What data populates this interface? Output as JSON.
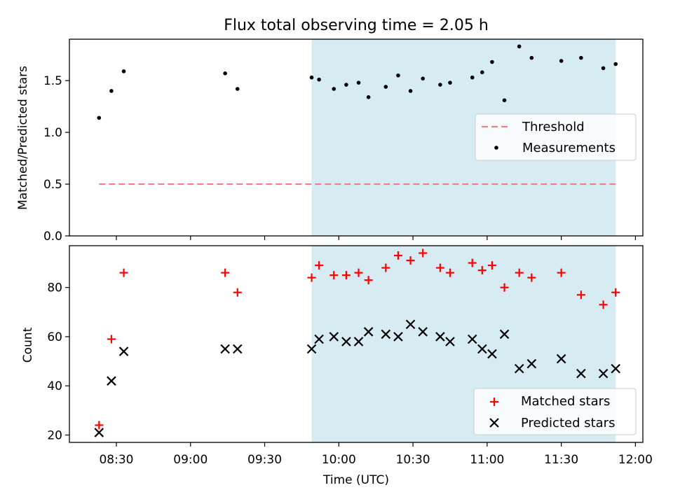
{
  "chart_data": [
    {
      "type": "scatter",
      "title": "Flux total observing time = 2.05 h",
      "xlabel": "",
      "ylabel": "Matched/Predicted stars",
      "ylim": [
        0,
        1.9
      ],
      "yticks": [
        "0.0",
        "0.5",
        "1.0",
        "1.5"
      ],
      "legend": {
        "position": "center-right",
        "entries": [
          "Threshold",
          "Measurements"
        ]
      },
      "shaded_span": {
        "start": "09:49",
        "end": "11:52",
        "color": "#add8e6"
      },
      "threshold": {
        "name": "Threshold",
        "value": 0.5,
        "x_start": "08:23",
        "x_end": "11:52",
        "color": "#f08080"
      },
      "series": [
        {
          "name": "Measurements",
          "color": "#000000",
          "marker": "dot",
          "points": [
            [
              "08:23",
              1.14
            ],
            [
              "08:28",
              1.4
            ],
            [
              "08:33",
              1.59
            ],
            [
              "09:14",
              1.57
            ],
            [
              "09:19",
              1.42
            ],
            [
              "09:49",
              1.53
            ],
            [
              "09:52",
              1.51
            ],
            [
              "09:58",
              1.42
            ],
            [
              "10:03",
              1.46
            ],
            [
              "10:08",
              1.48
            ],
            [
              "10:12",
              1.34
            ],
            [
              "10:19",
              1.44
            ],
            [
              "10:24",
              1.55
            ],
            [
              "10:29",
              1.4
            ],
            [
              "10:34",
              1.52
            ],
            [
              "10:41",
              1.46
            ],
            [
              "10:45",
              1.48
            ],
            [
              "10:54",
              1.53
            ],
            [
              "10:58",
              1.58
            ],
            [
              "11:02",
              1.68
            ],
            [
              "11:07",
              1.31
            ],
            [
              "11:13",
              1.83
            ],
            [
              "11:18",
              1.72
            ],
            [
              "11:30",
              1.69
            ],
            [
              "11:38",
              1.72
            ],
            [
              "11:47",
              1.62
            ],
            [
              "11:52",
              1.66
            ]
          ]
        }
      ]
    },
    {
      "type": "scatter",
      "title": "",
      "xlabel": "Time (UTC)",
      "ylabel": "Count",
      "ylim": [
        17,
        97
      ],
      "yticks": [
        "20",
        "40",
        "60",
        "80"
      ],
      "xlim": [
        "08:11",
        "12:03"
      ],
      "xticks": [
        "08:30",
        "09:00",
        "09:30",
        "10:00",
        "10:30",
        "11:00",
        "11:30",
        "12:00"
      ],
      "legend": {
        "position": "lower-right",
        "entries": [
          "Matched stars",
          "Predicted stars"
        ]
      },
      "shaded_span": {
        "start": "09:49",
        "end": "11:52",
        "color": "#add8e6"
      },
      "series": [
        {
          "name": "Matched stars",
          "color": "#ff0000",
          "marker": "plus",
          "points": [
            [
              "08:23",
              24
            ],
            [
              "08:28",
              59
            ],
            [
              "08:33",
              86
            ],
            [
              "09:14",
              86
            ],
            [
              "09:19",
              78
            ],
            [
              "09:49",
              84
            ],
            [
              "09:52",
              89
            ],
            [
              "09:58",
              85
            ],
            [
              "10:03",
              85
            ],
            [
              "10:08",
              86
            ],
            [
              "10:12",
              83
            ],
            [
              "10:19",
              88
            ],
            [
              "10:24",
              93
            ],
            [
              "10:29",
              91
            ],
            [
              "10:34",
              94
            ],
            [
              "10:41",
              88
            ],
            [
              "10:45",
              86
            ],
            [
              "10:54",
              90
            ],
            [
              "10:58",
              87
            ],
            [
              "11:02",
              89
            ],
            [
              "11:07",
              80
            ],
            [
              "11:13",
              86
            ],
            [
              "11:18",
              84
            ],
            [
              "11:30",
              86
            ],
            [
              "11:38",
              77
            ],
            [
              "11:47",
              73
            ],
            [
              "11:52",
              78
            ]
          ]
        },
        {
          "name": "Predicted stars",
          "color": "#000000",
          "marker": "x",
          "points": [
            [
              "08:23",
              21
            ],
            [
              "08:28",
              42
            ],
            [
              "08:33",
              54
            ],
            [
              "09:14",
              55
            ],
            [
              "09:19",
              55
            ],
            [
              "09:49",
              55
            ],
            [
              "09:52",
              59
            ],
            [
              "09:58",
              60
            ],
            [
              "10:03",
              58
            ],
            [
              "10:08",
              58
            ],
            [
              "10:12",
              62
            ],
            [
              "10:19",
              61
            ],
            [
              "10:24",
              60
            ],
            [
              "10:29",
              65
            ],
            [
              "10:34",
              62
            ],
            [
              "10:41",
              60
            ],
            [
              "10:45",
              58
            ],
            [
              "10:54",
              59
            ],
            [
              "10:58",
              55
            ],
            [
              "11:02",
              53
            ],
            [
              "11:07",
              61
            ],
            [
              "11:13",
              47
            ],
            [
              "11:18",
              49
            ],
            [
              "11:30",
              51
            ],
            [
              "11:38",
              45
            ],
            [
              "11:47",
              45
            ],
            [
              "11:52",
              47
            ]
          ]
        }
      ]
    }
  ]
}
